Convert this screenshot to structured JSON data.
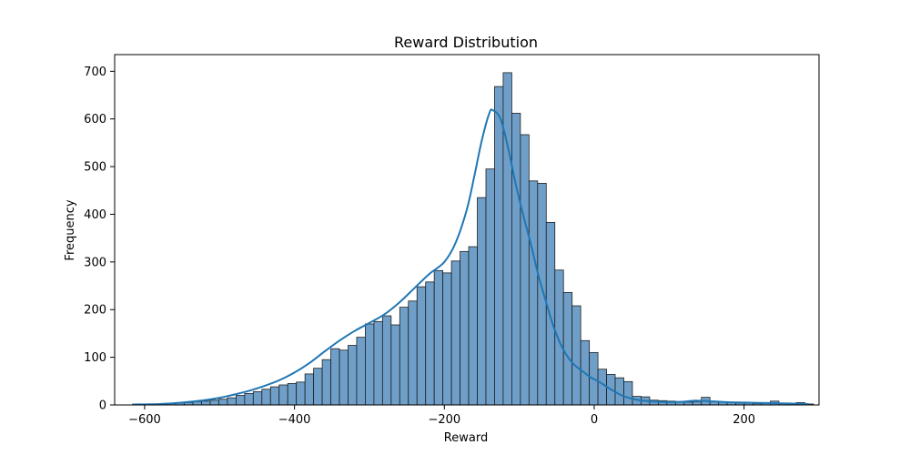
{
  "chart_data": {
    "type": "bar",
    "title": "Reward Distribution",
    "xlabel": "Reward",
    "ylabel": "Frequency",
    "xlim": [
      -640,
      300
    ],
    "ylim": [
      0,
      735
    ],
    "xticks": [
      -600,
      -400,
      -200,
      0,
      200
    ],
    "xtick_labels": [
      "−600",
      "−400",
      "−200",
      "0",
      "200"
    ],
    "yticks": [
      0,
      100,
      200,
      300,
      400,
      500,
      600,
      700
    ],
    "ytick_labels": [
      "0",
      "100",
      "200",
      "300",
      "400",
      "500",
      "600",
      "700"
    ],
    "bin_start": -616,
    "bin_width": 11.5,
    "counts": [
      2,
      2,
      2,
      2,
      3,
      4,
      5,
      7,
      8,
      10,
      12,
      15,
      20,
      24,
      28,
      33,
      38,
      42,
      45,
      48,
      65,
      77,
      95,
      118,
      115,
      125,
      142,
      170,
      175,
      187,
      168,
      205,
      218,
      248,
      258,
      282,
      277,
      302,
      322,
      332,
      435,
      495,
      668,
      697,
      612,
      567,
      470,
      465,
      383,
      283,
      236,
      208,
      135,
      110,
      75,
      64,
      57,
      49,
      18,
      17,
      10,
      9,
      8,
      7,
      6,
      7,
      16,
      8,
      6,
      5,
      4,
      4,
      3,
      5,
      8,
      4,
      3,
      5,
      2
    ],
    "kde": {
      "x": [
        -616,
        -580,
        -550,
        -520,
        -500,
        -480,
        -460,
        -440,
        -420,
        -400,
        -380,
        -360,
        -340,
        -320,
        -300,
        -280,
        -260,
        -240,
        -220,
        -200,
        -185,
        -170,
        -160,
        -150,
        -140,
        -135,
        -125,
        -115,
        -105,
        -95,
        -85,
        -75,
        -65,
        -55,
        -45,
        -35,
        -25,
        -15,
        -5,
        5,
        15,
        25,
        40,
        60,
        80,
        100,
        120,
        135,
        150,
        175,
        200,
        230,
        260,
        286
      ],
      "y": [
        1,
        2,
        5,
        10,
        15,
        22,
        30,
        40,
        52,
        68,
        88,
        112,
        135,
        155,
        172,
        190,
        215,
        245,
        275,
        300,
        340,
        410,
        480,
        555,
        612,
        618,
        600,
        540,
        465,
        400,
        340,
        275,
        220,
        168,
        128,
        100,
        82,
        70,
        58,
        50,
        40,
        30,
        18,
        10,
        7,
        6,
        7,
        9,
        8,
        6,
        5,
        4,
        3,
        2
      ]
    },
    "bar_color": "#6f9fc8",
    "bar_edge_color": "#1f1f1f",
    "line_color": "#1f77b4",
    "grid": false
  }
}
